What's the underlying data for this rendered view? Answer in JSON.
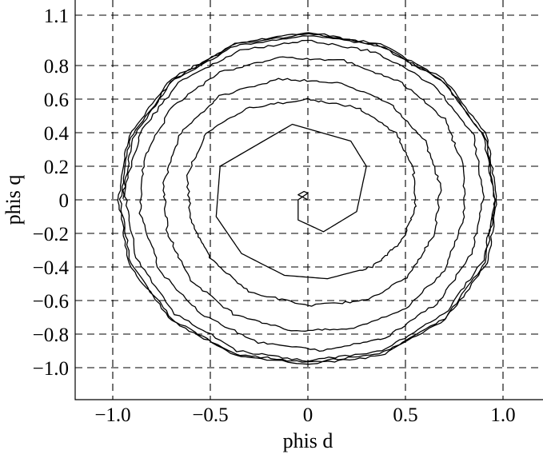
{
  "chart_data": {
    "type": "line",
    "title": "",
    "xlabel": "phis d",
    "ylabel": "phis q",
    "xlim": [
      -1.2,
      1.2
    ],
    "ylim": [
      -1.2,
      1.2
    ],
    "x_ticks": [
      -1.0,
      -0.5,
      0,
      0.5,
      1.0
    ],
    "x_tick_labels": [
      "−1.0",
      "−0.5",
      "0",
      "0.5",
      "1.0"
    ],
    "y_ticks": [
      1.1,
      0.8,
      0.6,
      0.4,
      0.2,
      0,
      -0.2,
      -0.4,
      -0.6,
      -0.8,
      -1.0
    ],
    "y_tick_labels": [
      "1.1",
      "0.8",
      "0.6",
      "0.4",
      "0.2",
      "0",
      "−0.2",
      "−0.4",
      "−0.6",
      "−0.8",
      "−1.0"
    ],
    "grid": true,
    "grid_style": "dashed",
    "legend": "none",
    "series": [
      {
        "values_xy": [
          [
            0.0,
            0.0
          ],
          [
            -0.05,
            0.03
          ],
          [
            -0.02,
            0.05
          ],
          [
            0.0,
            0.04
          ],
          [
            -0.05,
            0.0
          ],
          [
            -0.05,
            -0.12
          ],
          [
            0.08,
            -0.19
          ],
          [
            0.25,
            -0.07
          ],
          [
            0.3,
            0.2
          ],
          [
            0.22,
            0.35
          ],
          [
            -0.08,
            0.45
          ],
          [
            -0.45,
            0.2
          ],
          [
            -0.47,
            -0.1
          ],
          [
            -0.34,
            -0.32
          ],
          [
            -0.12,
            -0.45
          ],
          [
            0.1,
            -0.47
          ],
          [
            0.33,
            -0.4
          ],
          [
            0.48,
            -0.25
          ],
          [
            0.55,
            -0.05
          ],
          [
            0.54,
            0.2
          ],
          [
            0.45,
            0.4
          ],
          [
            0.25,
            0.55
          ],
          [
            0.0,
            0.6
          ],
          [
            -0.3,
            0.55
          ],
          [
            -0.52,
            0.4
          ],
          [
            -0.62,
            0.15
          ],
          [
            -0.6,
            -0.12
          ],
          [
            -0.5,
            -0.35
          ],
          [
            -0.3,
            -0.55
          ],
          [
            0.0,
            -0.63
          ],
          [
            0.3,
            -0.6
          ],
          [
            0.52,
            -0.45
          ],
          [
            0.65,
            -0.2
          ],
          [
            0.68,
            0.08
          ],
          [
            0.6,
            0.35
          ],
          [
            0.42,
            0.58
          ],
          [
            0.15,
            0.7
          ],
          [
            -0.15,
            0.72
          ],
          [
            -0.45,
            0.62
          ],
          [
            -0.65,
            0.4
          ],
          [
            -0.74,
            0.1
          ],
          [
            -0.72,
            -0.2
          ],
          [
            -0.6,
            -0.48
          ],
          [
            -0.38,
            -0.68
          ],
          [
            -0.08,
            -0.78
          ],
          [
            0.22,
            -0.77
          ],
          [
            0.5,
            -0.65
          ],
          [
            0.7,
            -0.42
          ],
          [
            0.8,
            -0.12
          ],
          [
            0.8,
            0.2
          ],
          [
            0.7,
            0.48
          ],
          [
            0.48,
            0.7
          ],
          [
            0.18,
            0.83
          ],
          [
            -0.15,
            0.85
          ],
          [
            -0.45,
            0.76
          ],
          [
            -0.7,
            0.55
          ],
          [
            -0.84,
            0.25
          ],
          [
            -0.86,
            -0.08
          ],
          [
            -0.76,
            -0.42
          ],
          [
            -0.55,
            -0.68
          ],
          [
            -0.25,
            -0.85
          ],
          [
            0.08,
            -0.9
          ],
          [
            0.4,
            -0.82
          ],
          [
            0.66,
            -0.62
          ],
          [
            0.84,
            -0.32
          ],
          [
            0.9,
            0.02
          ],
          [
            0.85,
            0.38
          ],
          [
            0.65,
            0.68
          ],
          [
            0.35,
            0.88
          ],
          [
            0.0,
            0.95
          ],
          [
            -0.35,
            0.89
          ],
          [
            -0.66,
            0.7
          ],
          [
            -0.86,
            0.4
          ],
          [
            -0.94,
            0.05
          ],
          [
            -0.88,
            -0.35
          ],
          [
            -0.68,
            -0.68
          ],
          [
            -0.36,
            -0.9
          ],
          [
            0.0,
            -0.96
          ],
          [
            0.38,
            -0.9
          ],
          [
            0.7,
            -0.68
          ],
          [
            0.9,
            -0.36
          ],
          [
            0.96,
            0.0
          ],
          [
            0.9,
            0.38
          ],
          [
            0.7,
            0.7
          ],
          [
            0.37,
            0.92
          ],
          [
            0.0,
            1.0
          ],
          [
            -0.37,
            0.93
          ],
          [
            -0.7,
            0.72
          ],
          [
            -0.92,
            0.38
          ],
          [
            -0.97,
            0.0
          ],
          [
            -0.92,
            -0.38
          ],
          [
            -0.7,
            -0.72
          ],
          [
            -0.37,
            -0.93
          ],
          [
            0.0,
            -0.98
          ],
          [
            0.37,
            -0.93
          ],
          [
            0.7,
            -0.72
          ],
          [
            0.92,
            -0.38
          ],
          [
            0.97,
            0.0
          ],
          [
            0.92,
            0.38
          ],
          [
            0.7,
            0.72
          ],
          [
            0.37,
            0.93
          ],
          [
            0.0,
            0.99
          ],
          [
            -0.37,
            0.93
          ],
          [
            -0.7,
            0.71
          ],
          [
            -0.91,
            0.37
          ],
          [
            -0.96,
            0.0
          ],
          [
            -0.91,
            -0.38
          ],
          [
            -0.7,
            -0.71
          ],
          [
            -0.37,
            -0.92
          ],
          [
            0.0,
            -0.97
          ],
          [
            0.37,
            -0.92
          ],
          [
            0.7,
            -0.71
          ],
          [
            0.91,
            -0.37
          ],
          [
            0.96,
            0.0
          ],
          [
            0.91,
            0.37
          ],
          [
            0.7,
            0.7
          ],
          [
            0.37,
            0.92
          ],
          [
            0.0,
            0.98
          ],
          [
            -0.37,
            0.92
          ],
          [
            -0.7,
            0.7
          ],
          [
            -0.9,
            0.37
          ],
          [
            -0.95,
            0.0
          ]
        ]
      }
    ]
  }
}
